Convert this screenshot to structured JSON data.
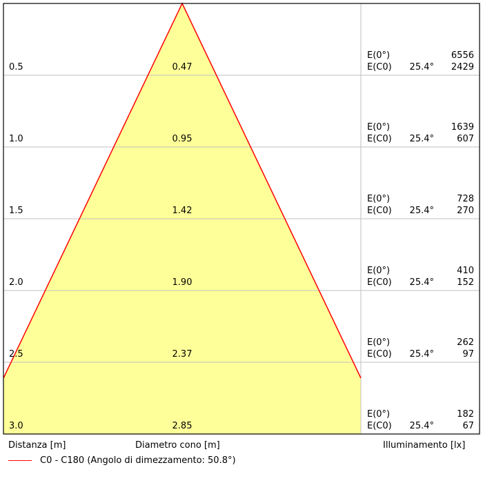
{
  "colors": {
    "cone_fill": "#ffff99",
    "cone_line": "#ff0000",
    "grid": "#bfbfbf",
    "frame": "#000000"
  },
  "rows": [
    {
      "distance": "0.5",
      "diameter": "0.47",
      "e0_label": "E(0°)",
      "e0_value": "6556",
      "ec0_label": "E(C0)",
      "angle": "25.4°",
      "ec0_value": "2429"
    },
    {
      "distance": "1.0",
      "diameter": "0.95",
      "e0_label": "E(0°)",
      "e0_value": "1639",
      "ec0_label": "E(C0)",
      "angle": "25.4°",
      "ec0_value": "607"
    },
    {
      "distance": "1.5",
      "diameter": "1.42",
      "e0_label": "E(0°)",
      "e0_value": "728",
      "ec0_label": "E(C0)",
      "angle": "25.4°",
      "ec0_value": "270"
    },
    {
      "distance": "2.0",
      "diameter": "1.90",
      "e0_label": "E(0°)",
      "e0_value": "410",
      "ec0_label": "E(C0)",
      "angle": "25.4°",
      "ec0_value": "152"
    },
    {
      "distance": "2.5",
      "diameter": "2.37",
      "e0_label": "E(0°)",
      "e0_value": "262",
      "ec0_label": "E(C0)",
      "angle": "25.4°",
      "ec0_value": "97"
    },
    {
      "distance": "3.0",
      "diameter": "2.85",
      "e0_label": "E(0°)",
      "e0_value": "182",
      "ec0_label": "E(C0)",
      "angle": "25.4°",
      "ec0_value": "67"
    }
  ],
  "footer": {
    "distance_label": "Distanza [m]",
    "diameter_label": "Diametro cono [m]",
    "illuminance_label": "Illuminamento [lx]",
    "legend_label": "C0 - C180 (Angolo di dimezzamento: 50.8°)"
  }
}
